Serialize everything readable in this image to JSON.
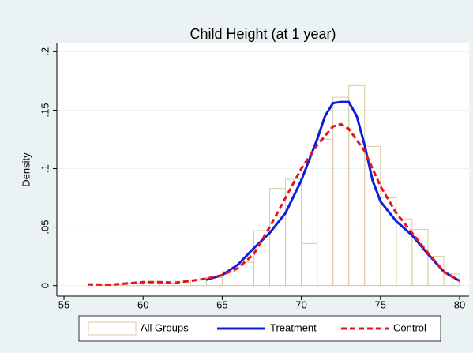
{
  "chart_data": {
    "type": "histogram",
    "title": "Child Height (at 1 year)",
    "y_label": "Density",
    "xlim": [
      54.55,
      80.6
    ],
    "ylim": [
      -0.009,
      0.207
    ],
    "xticks": [
      55,
      60,
      65,
      70,
      75,
      80
    ],
    "yticks": [
      0,
      {
        "value": 0.05,
        "label": ".05"
      },
      {
        "value": 0.1,
        "label": ".1"
      },
      {
        "value": 0.15,
        "label": ".15"
      },
      {
        "value": 0.2,
        "label": ".2"
      }
    ],
    "grid": true,
    "legend": "bottom",
    "histogram": {
      "name": "All Groups",
      "color": "#d9c9a0",
      "bins": [
        57,
        58,
        59,
        60,
        61,
        62,
        63,
        64,
        65,
        66,
        67,
        68,
        69,
        70,
        71,
        72,
        73,
        74,
        75,
        76,
        77,
        78,
        79,
        80
      ],
      "values": [
        0.001,
        0.001,
        0.002,
        0.003,
        0.002,
        0.003,
        0.005,
        0.007,
        0.012,
        0.02,
        0.047,
        0.083,
        0.091,
        0.036,
        0.125,
        0.161,
        0.171,
        0.119,
        0.075,
        0.057,
        0.048,
        0.025,
        0.01
      ]
    },
    "series": [
      {
        "name": "Treatment",
        "color": "#0a1fd6",
        "line_style": "solid",
        "x": [
          64,
          65,
          66,
          67,
          68,
          69,
          70,
          71,
          71.5,
          72,
          72.5,
          73,
          73.5,
          74,
          74.5,
          75,
          76,
          77,
          78,
          79,
          80
        ],
        "values": [
          0.005,
          0.009,
          0.018,
          0.032,
          0.045,
          0.062,
          0.09,
          0.125,
          0.145,
          0.156,
          0.157,
          0.157,
          0.145,
          0.12,
          0.09,
          0.072,
          0.055,
          0.043,
          0.027,
          0.012,
          0.004
        ]
      },
      {
        "name": "Control",
        "color": "#e8111b",
        "line_style": "dashed",
        "x": [
          56.5,
          58,
          60,
          61,
          62,
          63,
          64,
          65,
          66,
          67,
          68,
          69,
          70,
          71,
          72,
          72.5,
          73,
          74,
          75,
          76,
          77,
          78,
          79,
          80
        ],
        "values": [
          0.001,
          0.0008,
          0.003,
          0.003,
          0.0025,
          0.004,
          0.006,
          0.009,
          0.015,
          0.027,
          0.05,
          0.075,
          0.1,
          0.12,
          0.136,
          0.138,
          0.134,
          0.115,
          0.085,
          0.062,
          0.045,
          0.028,
          0.012,
          0.004
        ]
      }
    ]
  }
}
